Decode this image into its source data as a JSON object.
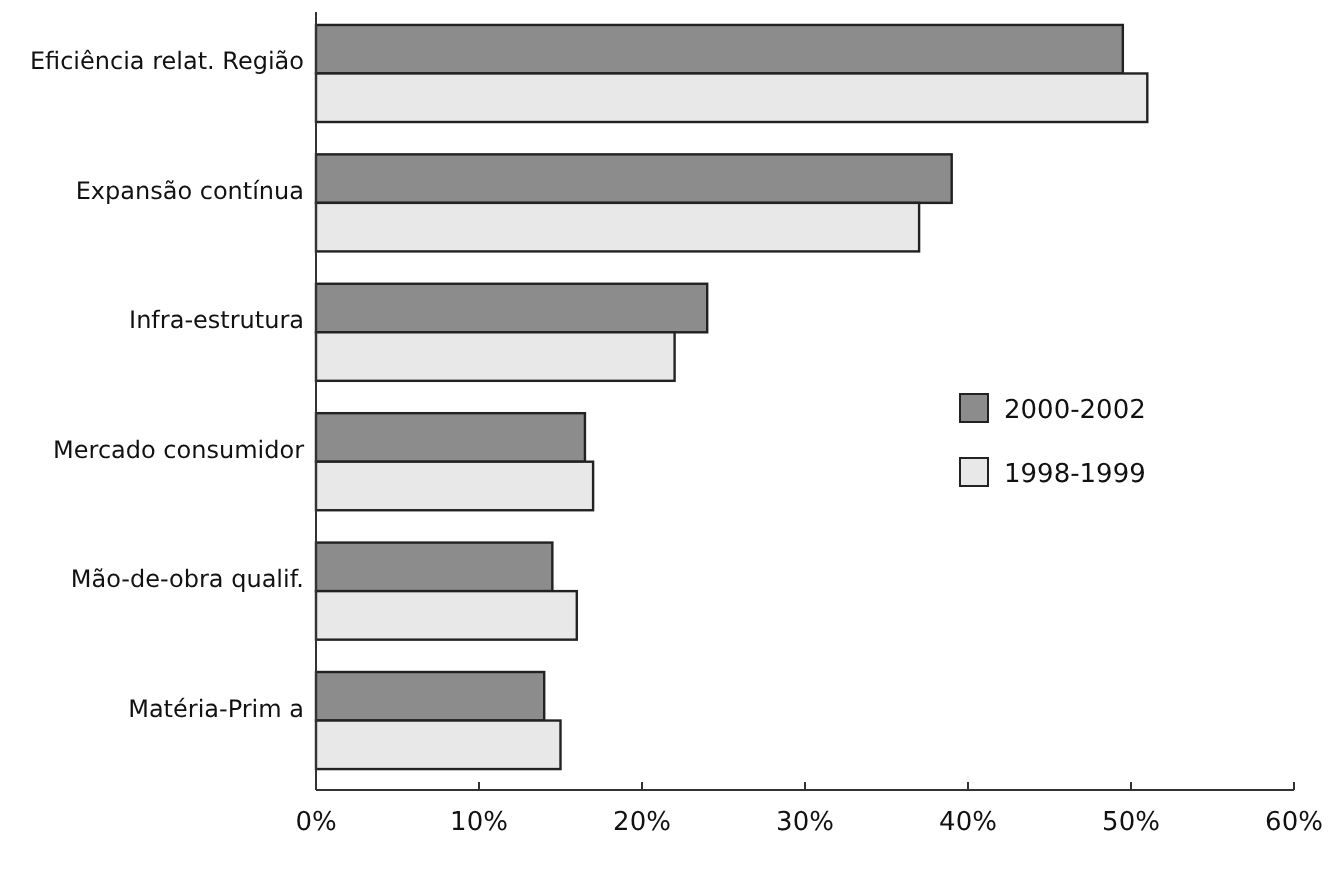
{
  "chart_data": {
    "type": "bar",
    "orientation": "horizontal",
    "categories": [
      "Eficiência relat. Região",
      "Expansão contínua",
      "Infra-estrutura",
      "Mercado consumidor",
      "Mão-de-obra qualif.",
      "Matéria-Prim a"
    ],
    "series": [
      {
        "name": "2000-2002",
        "color": "#8c8c8c",
        "values": [
          49.5,
          39,
          24,
          16.5,
          14.5,
          14
        ]
      },
      {
        "name": "1998-1999",
        "color": "#e8e8e8",
        "values": [
          51,
          37,
          22,
          17,
          16,
          15
        ]
      }
    ],
    "xlim": [
      0,
      60
    ],
    "xticks": [
      {
        "value": 0,
        "label": "0%"
      },
      {
        "value": 10,
        "label": "10%"
      },
      {
        "value": 20,
        "label": "20%"
      },
      {
        "value": 30,
        "label": "30%"
      },
      {
        "value": 40,
        "label": "40%"
      },
      {
        "value": 50,
        "label": "50%"
      },
      {
        "value": 60,
        "label": "60%"
      }
    ],
    "legend": "right",
    "grid": false
  }
}
